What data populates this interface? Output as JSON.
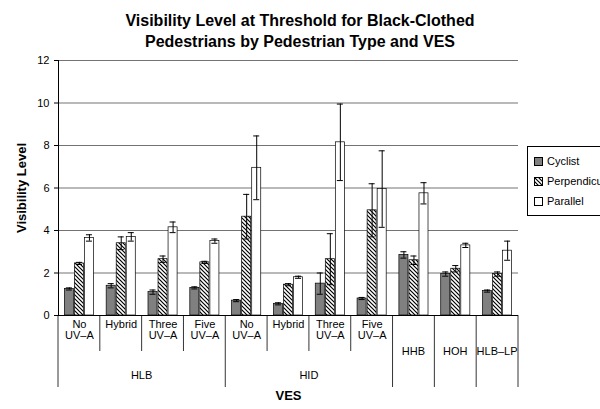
{
  "chart_data": {
    "type": "bar",
    "title": "Visibility Level at Threshold for Black-Clothed Pedestrians by Pedestrian Type and VES",
    "x_label": "VES",
    "y_label": "Visibility Level",
    "categories": [
      "No UV–A",
      "Hybrid",
      "Three UV–A",
      "Five UV–A",
      "No UV–A",
      "Hybrid",
      "Three UV–A",
      "Five UV–A",
      null,
      null,
      null
    ],
    "groups": [
      "HLB",
      "HLB",
      "HLB",
      "HLB",
      "HID",
      "HID",
      "HID",
      "HID",
      "HHB",
      "HOH",
      "HLB–LP"
    ],
    "series": [
      {
        "name": "Cyclist",
        "color": "#808080",
        "values": [
          1.25,
          1.4,
          1.1,
          1.3,
          0.7,
          0.55,
          1.5,
          0.8,
          2.85,
          1.95,
          1.15
        ],
        "errors": [
          0.05,
          0.1,
          0.1,
          0.05,
          0.05,
          0.05,
          0.5,
          0.05,
          0.15,
          0.1,
          0.05
        ]
      },
      {
        "name": "Perpendicular",
        "color": "#000000",
        "values": [
          2.45,
          3.4,
          2.65,
          2.5,
          4.65,
          1.45,
          2.65,
          4.95,
          2.6,
          2.2,
          1.95
        ],
        "errors": [
          0.05,
          0.3,
          0.15,
          0.05,
          1.05,
          0.05,
          1.2,
          1.25,
          0.2,
          0.15,
          0.1
        ]
      },
      {
        "name": "Parallel",
        "color": "#ffffff",
        "values": [
          3.65,
          3.7,
          4.15,
          3.5,
          6.95,
          1.8,
          8.15,
          5.95,
          5.75,
          3.3,
          3.05
        ],
        "errors": [
          0.15,
          0.2,
          0.25,
          0.1,
          1.5,
          0.05,
          1.8,
          1.8,
          0.5,
          0.1,
          0.45
        ]
      }
    ],
    "ylim": [
      0,
      12
    ],
    "yticks": [
      0,
      2,
      4,
      6,
      8,
      10,
      12
    ],
    "grid": true,
    "legend": "right"
  }
}
